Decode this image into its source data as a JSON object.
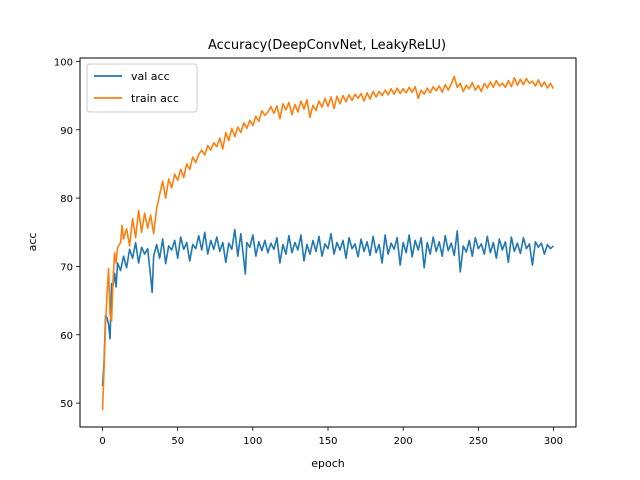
{
  "chart_data": {
    "type": "line",
    "title": "Accuracy(DeepConvNet, LeakyReLU)",
    "xlabel": "epoch",
    "ylabel": "acc",
    "xlim": [
      -15,
      315
    ],
    "ylim": [
      46.5,
      100.5
    ],
    "xticks": [
      0,
      50,
      100,
      150,
      200,
      250,
      300
    ],
    "yticks": [
      50,
      60,
      70,
      80,
      90,
      100
    ],
    "grid": false,
    "legend_position": "top-left",
    "series": [
      {
        "name": "val acc",
        "color": "#1f77b4",
        "points": [
          [
            0,
            52.5
          ],
          [
            1,
            56
          ],
          [
            2,
            62.8
          ],
          [
            3,
            62.5
          ],
          [
            4,
            61.5
          ],
          [
            5,
            59.4
          ],
          [
            6,
            67.5
          ],
          [
            7,
            67.2
          ],
          [
            8,
            69
          ],
          [
            9,
            67
          ],
          [
            10,
            70.5
          ],
          [
            12,
            69.4
          ],
          [
            14,
            71.5
          ],
          [
            16,
            69.8
          ],
          [
            18,
            72.5
          ],
          [
            20,
            71.2
          ],
          [
            22,
            73.5
          ],
          [
            24,
            70.5
          ],
          [
            26,
            72.8
          ],
          [
            28,
            71.8
          ],
          [
            30,
            72.6
          ],
          [
            32,
            68.5
          ],
          [
            33,
            66.2
          ],
          [
            34,
            71.5
          ],
          [
            36,
            73.2
          ],
          [
            38,
            71.2
          ],
          [
            40,
            74
          ],
          [
            42,
            70.4
          ],
          [
            44,
            73
          ],
          [
            46,
            72.4
          ],
          [
            48,
            73.8
          ],
          [
            50,
            71.2
          ],
          [
            52,
            74.3
          ],
          [
            54,
            72.5
          ],
          [
            56,
            73.5
          ],
          [
            58,
            70.8
          ],
          [
            60,
            73.2
          ],
          [
            62,
            72.6
          ],
          [
            64,
            74.5
          ],
          [
            66,
            72.4
          ],
          [
            68,
            75
          ],
          [
            70,
            71.8
          ],
          [
            72,
            73.8
          ],
          [
            74,
            72.5
          ],
          [
            76,
            74.3
          ],
          [
            78,
            72.2
          ],
          [
            80,
            73.5
          ],
          [
            82,
            70.6
          ],
          [
            84,
            73.4
          ],
          [
            86,
            72.5
          ],
          [
            88,
            75.4
          ],
          [
            90,
            71.5
          ],
          [
            92,
            74.8
          ],
          [
            94,
            70.9
          ],
          [
            95,
            68.9
          ],
          [
            96,
            73.5
          ],
          [
            98,
            72.8
          ],
          [
            100,
            74.6
          ],
          [
            102,
            71.5
          ],
          [
            104,
            73.6
          ],
          [
            106,
            72.3
          ],
          [
            108,
            73.8
          ],
          [
            110,
            72
          ],
          [
            112,
            73.4
          ],
          [
            114,
            72.5
          ],
          [
            116,
            74.2
          ],
          [
            118,
            70.5
          ],
          [
            120,
            73.2
          ],
          [
            122,
            71.8
          ],
          [
            124,
            74.5
          ],
          [
            126,
            72
          ],
          [
            128,
            73.5
          ],
          [
            130,
            72.4
          ],
          [
            132,
            74.6
          ],
          [
            134,
            70.8
          ],
          [
            136,
            73.2
          ],
          [
            138,
            71.8
          ],
          [
            140,
            73.8
          ],
          [
            142,
            72.2
          ],
          [
            144,
            74.4
          ],
          [
            146,
            71.5
          ],
          [
            148,
            73.3
          ],
          [
            150,
            72.6
          ],
          [
            152,
            74.8
          ],
          [
            154,
            71.8
          ],
          [
            156,
            73.5
          ],
          [
            158,
            72.4
          ],
          [
            160,
            73.8
          ],
          [
            162,
            71.2
          ],
          [
            164,
            74.2
          ],
          [
            166,
            72.6
          ],
          [
            168,
            73.3
          ],
          [
            170,
            71.4
          ],
          [
            172,
            74
          ],
          [
            174,
            72.2
          ],
          [
            176,
            73.6
          ],
          [
            178,
            71.6
          ],
          [
            180,
            74.4
          ],
          [
            182,
            72
          ],
          [
            184,
            73.2
          ],
          [
            186,
            70.5
          ],
          [
            188,
            74.6
          ],
          [
            190,
            71.8
          ],
          [
            192,
            73.4
          ],
          [
            194,
            72.5
          ],
          [
            196,
            74.2
          ],
          [
            198,
            70.2
          ],
          [
            200,
            73.5
          ],
          [
            202,
            72
          ],
          [
            204,
            74.6
          ],
          [
            206,
            71.4
          ],
          [
            208,
            73.8
          ],
          [
            210,
            72.4
          ],
          [
            212,
            74.2
          ],
          [
            214,
            69.8
          ],
          [
            216,
            73.5
          ],
          [
            218,
            71.8
          ],
          [
            220,
            74.3
          ],
          [
            222,
            72.2
          ],
          [
            224,
            73.6
          ],
          [
            226,
            71.5
          ],
          [
            228,
            74.5
          ],
          [
            230,
            72.3
          ],
          [
            232,
            73.4
          ],
          [
            234,
            71.6
          ],
          [
            236,
            75.2
          ],
          [
            238,
            69.2
          ],
          [
            240,
            73
          ],
          [
            242,
            72.1
          ],
          [
            244,
            73.8
          ],
          [
            246,
            71.5
          ],
          [
            248,
            74.2
          ],
          [
            250,
            72.6
          ],
          [
            252,
            73.3
          ],
          [
            254,
            71.8
          ],
          [
            256,
            74.4
          ],
          [
            258,
            72
          ],
          [
            260,
            73.5
          ],
          [
            262,
            71.2
          ],
          [
            264,
            74
          ],
          [
            266,
            72.4
          ],
          [
            268,
            73.6
          ],
          [
            270,
            70.6
          ],
          [
            272,
            74.3
          ],
          [
            274,
            72.2
          ],
          [
            276,
            73.4
          ],
          [
            278,
            71.9
          ],
          [
            280,
            74.2
          ],
          [
            282,
            72.6
          ],
          [
            284,
            73.3
          ],
          [
            286,
            70.2
          ],
          [
            288,
            73.6
          ],
          [
            290,
            72.8
          ],
          [
            292,
            73.4
          ],
          [
            294,
            71.8
          ],
          [
            296,
            73.2
          ],
          [
            298,
            72.6
          ],
          [
            300,
            73
          ]
        ]
      },
      {
        "name": "train acc",
        "color": "#ff7f0e",
        "points": [
          [
            0,
            49
          ],
          [
            1,
            55
          ],
          [
            2,
            61.5
          ],
          [
            3,
            66
          ],
          [
            4,
            69.7
          ],
          [
            5,
            63
          ],
          [
            6,
            62
          ],
          [
            7,
            68
          ],
          [
            8,
            72
          ],
          [
            9,
            70.5
          ],
          [
            10,
            72.8
          ],
          [
            12,
            73.5
          ],
          [
            13,
            76
          ],
          [
            14,
            74
          ],
          [
            16,
            75.5
          ],
          [
            18,
            73
          ],
          [
            20,
            77
          ],
          [
            22,
            74.2
          ],
          [
            24,
            78.2
          ],
          [
            26,
            75
          ],
          [
            28,
            77.8
          ],
          [
            30,
            75.6
          ],
          [
            32,
            77.5
          ],
          [
            34,
            74.8
          ],
          [
            36,
            78.5
          ],
          [
            38,
            80.5
          ],
          [
            40,
            82.5
          ],
          [
            42,
            80
          ],
          [
            44,
            82.8
          ],
          [
            46,
            81.5
          ],
          [
            48,
            83.5
          ],
          [
            50,
            82.6
          ],
          [
            52,
            84.2
          ],
          [
            54,
            83
          ],
          [
            56,
            85
          ],
          [
            58,
            84.2
          ],
          [
            60,
            86
          ],
          [
            62,
            85.2
          ],
          [
            64,
            86.4
          ],
          [
            66,
            87
          ],
          [
            68,
            86.3
          ],
          [
            70,
            87.7
          ],
          [
            72,
            87
          ],
          [
            74,
            88.1
          ],
          [
            76,
            87.5
          ],
          [
            78,
            88.8
          ],
          [
            80,
            87.2
          ],
          [
            82,
            89.6
          ],
          [
            84,
            88.4
          ],
          [
            86,
            90.2
          ],
          [
            88,
            89
          ],
          [
            90,
            90.4
          ],
          [
            92,
            89.6
          ],
          [
            94,
            91
          ],
          [
            96,
            90.2
          ],
          [
            98,
            91.4
          ],
          [
            100,
            90.6
          ],
          [
            102,
            92
          ],
          [
            104,
            91.2
          ],
          [
            106,
            92.8
          ],
          [
            108,
            92.1
          ],
          [
            110,
            92.6
          ],
          [
            112,
            93.4
          ],
          [
            114,
            92.4
          ],
          [
            116,
            93.5
          ],
          [
            118,
            91.6
          ],
          [
            120,
            93.8
          ],
          [
            122,
            92.9
          ],
          [
            124,
            94
          ],
          [
            126,
            92.2
          ],
          [
            128,
            93.7
          ],
          [
            130,
            92.6
          ],
          [
            132,
            94.2
          ],
          [
            134,
            93
          ],
          [
            136,
            94.4
          ],
          [
            138,
            91.8
          ],
          [
            140,
            93.6
          ],
          [
            142,
            92.8
          ],
          [
            144,
            94.2
          ],
          [
            146,
            93.3
          ],
          [
            148,
            94.6
          ],
          [
            150,
            93.4
          ],
          [
            152,
            94.8
          ],
          [
            154,
            93.1
          ],
          [
            156,
            94.9
          ],
          [
            158,
            93.8
          ],
          [
            160,
            95
          ],
          [
            162,
            94.1
          ],
          [
            164,
            95.1
          ],
          [
            166,
            94.3
          ],
          [
            168,
            95.2
          ],
          [
            170,
            94.6
          ],
          [
            172,
            95.3
          ],
          [
            174,
            94.2
          ],
          [
            176,
            95.4
          ],
          [
            178,
            94.5
          ],
          [
            180,
            95.6
          ],
          [
            182,
            94.8
          ],
          [
            184,
            95.6
          ],
          [
            186,
            95
          ],
          [
            188,
            95.8
          ],
          [
            190,
            95.1
          ],
          [
            192,
            96
          ],
          [
            194,
            95.2
          ],
          [
            196,
            96.1
          ],
          [
            198,
            95.3
          ],
          [
            200,
            96
          ],
          [
            202,
            95.4
          ],
          [
            204,
            96.2
          ],
          [
            206,
            95.5
          ],
          [
            208,
            96.3
          ],
          [
            210,
            94.6
          ],
          [
            212,
            95.8
          ],
          [
            214,
            95.2
          ],
          [
            216,
            96.1
          ],
          [
            218,
            95.4
          ],
          [
            220,
            96.3
          ],
          [
            222,
            95.7
          ],
          [
            224,
            96.4
          ],
          [
            226,
            95.5
          ],
          [
            228,
            96.6
          ],
          [
            230,
            95.8
          ],
          [
            232,
            96.7
          ],
          [
            234,
            97.8
          ],
          [
            236,
            96.2
          ],
          [
            238,
            96.8
          ],
          [
            240,
            95.6
          ],
          [
            242,
            96.5
          ],
          [
            244,
            96
          ],
          [
            246,
            96.9
          ],
          [
            248,
            95.8
          ],
          [
            250,
            96.5
          ],
          [
            252,
            95.6
          ],
          [
            254,
            96.8
          ],
          [
            256,
            96.1
          ],
          [
            258,
            97
          ],
          [
            260,
            96.2
          ],
          [
            262,
            97.2
          ],
          [
            264,
            96.4
          ],
          [
            266,
            96.8
          ],
          [
            268,
            96.2
          ],
          [
            270,
            97.2
          ],
          [
            272,
            96.3
          ],
          [
            274,
            97.6
          ],
          [
            276,
            96.5
          ],
          [
            278,
            97.4
          ],
          [
            280,
            96.6
          ],
          [
            282,
            97.5
          ],
          [
            284,
            96.8
          ],
          [
            286,
            97.1
          ],
          [
            288,
            96.4
          ],
          [
            290,
            97.3
          ],
          [
            292,
            96.3
          ],
          [
            294,
            97
          ],
          [
            296,
            96.1
          ],
          [
            298,
            96.8
          ],
          [
            300,
            96
          ]
        ]
      }
    ]
  }
}
